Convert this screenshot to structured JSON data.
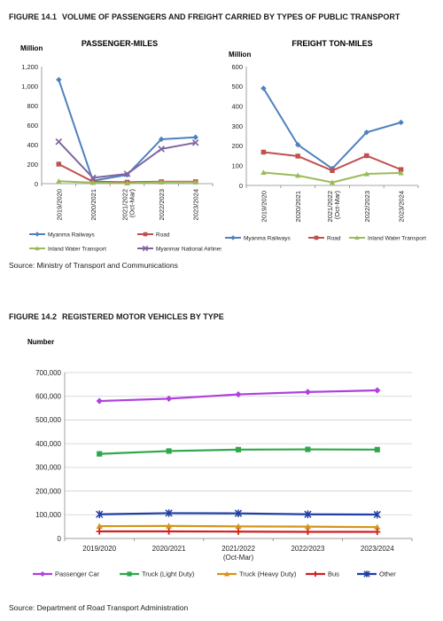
{
  "figure1": {
    "number": "FIGURE 14.1",
    "title": "VOLUME OF PASSENGERS AND FREIGHT CARRIED BY TYPES OF PUBLIC TRANSPORT",
    "source": "Source: Ministry of Transport and Communications"
  },
  "figure2": {
    "number": "FIGURE 14.2",
    "title": "REGISTERED MOTOR VEHICLES BY TYPE",
    "source": "Source: Department of Road Transport Administration"
  },
  "chart_data": [
    {
      "type": "line",
      "title": "PASSENGER-MILES",
      "ylabel": "Million",
      "categories": [
        "2019/2020",
        "2020/2021",
        "2021/2022 (Oct-Mar)",
        "2022/2023",
        "2023/2024"
      ],
      "yticks": [
        "0",
        "200",
        "400",
        "600",
        "800",
        "1,000",
        "1,200"
      ],
      "ylim": [
        0,
        1200
      ],
      "grid": false,
      "legend": "bottom",
      "series": [
        {
          "name": "Myanma Railways",
          "values": [
            1065,
            30,
            90,
            455,
            475
          ],
          "color": "#4f81bd",
          "marker": "diamond"
        },
        {
          "name": "Road",
          "values": [
            200,
            20,
            15,
            20,
            20
          ],
          "color": "#c0504d",
          "marker": "square"
        },
        {
          "name": "Inland Water Transport",
          "values": [
            25,
            10,
            5,
            15,
            15
          ],
          "color": "#9bbb59",
          "marker": "triangle"
        },
        {
          "name": "Myanmar National Airlines",
          "values": [
            430,
            60,
            100,
            355,
            420
          ],
          "color": "#8064a2",
          "marker": "x"
        }
      ]
    },
    {
      "type": "line",
      "title": "FREIGHT TON-MILES",
      "ylabel": "Million",
      "categories": [
        "2019/2020",
        "2020/2021",
        "2021/2022 (Oct-Mar)",
        "2022/2023",
        "2023/2024"
      ],
      "yticks": [
        "0",
        "100",
        "200",
        "300",
        "400",
        "500",
        "600"
      ],
      "ylim": [
        0,
        600
      ],
      "grid": false,
      "legend": "bottom",
      "series": [
        {
          "name": "Myanma Railways",
          "values": [
            490,
            205,
            85,
            268,
            318
          ],
          "color": "#4f81bd",
          "marker": "diamond"
        },
        {
          "name": "Road",
          "values": [
            168,
            148,
            75,
            150,
            80
          ],
          "color": "#c0504d",
          "marker": "square"
        },
        {
          "name": "Inland Water Transport",
          "values": [
            65,
            50,
            15,
            58,
            63
          ],
          "color": "#9bbb59",
          "marker": "triangle"
        }
      ]
    },
    {
      "type": "line",
      "title": "",
      "ylabel": "Number",
      "categories": [
        "2019/2020",
        "2020/2021",
        "2021/2022 (Oct-Mar)",
        "2022/2023",
        "2023/2024"
      ],
      "yticks": [
        "0",
        "100,000",
        "200,000",
        "300,000",
        "400,000",
        "500,000",
        "600,000",
        "700,000"
      ],
      "ylim": [
        0,
        700000
      ],
      "grid": true,
      "legend": "bottom",
      "series": [
        {
          "name": "Passenger Car",
          "values": [
            580000,
            590000,
            608000,
            618000,
            625000
          ],
          "color": "#b040e0",
          "marker": "diamond"
        },
        {
          "name": "Truck (Light Duty)",
          "values": [
            357000,
            369000,
            375000,
            376000,
            375000
          ],
          "color": "#2ea84a",
          "marker": "square"
        },
        {
          "name": "Truck (Heavy Duty)",
          "values": [
            52000,
            53000,
            51000,
            50000,
            48000
          ],
          "color": "#d4951a",
          "marker": "triangle"
        },
        {
          "name": "Bus",
          "values": [
            30000,
            30000,
            29000,
            28000,
            28000
          ],
          "color": "#d02020",
          "marker": "plus"
        },
        {
          "name": "Other",
          "values": [
            102000,
            107000,
            106000,
            102000,
            101000
          ],
          "color": "#1f3fa6",
          "marker": "asterisk"
        }
      ]
    }
  ]
}
